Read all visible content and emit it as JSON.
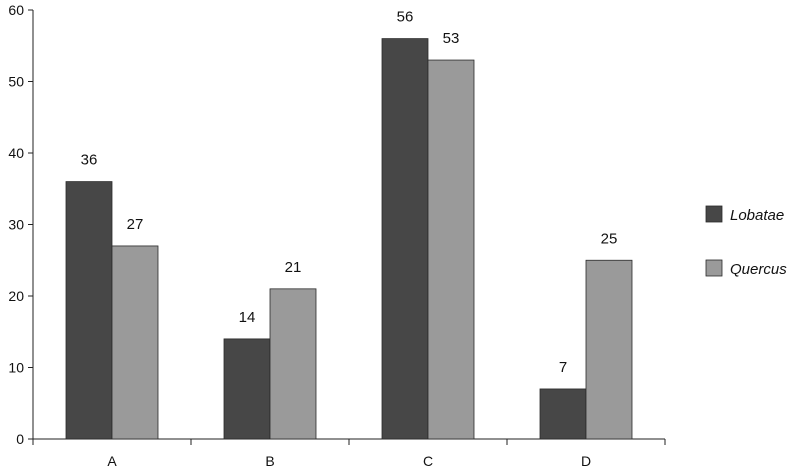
{
  "chart_data": {
    "type": "bar",
    "title": "",
    "xlabel": "",
    "ylabel": "",
    "ylim": [
      0,
      60
    ],
    "yticks": [
      0,
      10,
      20,
      30,
      40,
      50,
      60
    ],
    "grid": false,
    "legend_position": "right",
    "categories": [
      "A",
      "B",
      "C",
      "D"
    ],
    "series": [
      {
        "name": "Lobatae",
        "values": [
          36,
          14,
          56,
          7
        ],
        "color": "#474747"
      },
      {
        "name": "Quercus",
        "values": [
          27,
          21,
          53,
          25
        ],
        "color": "#9a9a9a"
      }
    ],
    "data_labels": true
  }
}
